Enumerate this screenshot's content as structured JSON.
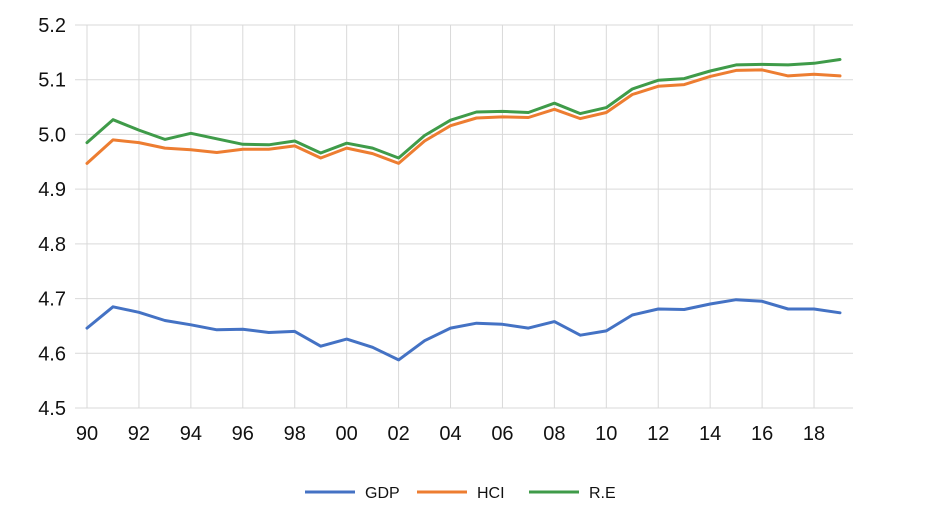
{
  "chart_data": {
    "type": "line",
    "title": "",
    "xlabel": "",
    "ylabel": "",
    "x": [
      1990,
      1991,
      1992,
      1993,
      1994,
      1995,
      1996,
      1997,
      1998,
      1999,
      2000,
      2001,
      2002,
      2003,
      2004,
      2005,
      2006,
      2007,
      2008,
      2009,
      2010,
      2011,
      2012,
      2013,
      2014,
      2015,
      2016,
      2017,
      2018,
      2019
    ],
    "xticks": [
      1990,
      1992,
      1994,
      1996,
      1998,
      2000,
      2002,
      2004,
      2006,
      2008,
      2010,
      2012,
      2014,
      2016,
      2018
    ],
    "xtick_labels": [
      "90",
      "92",
      "94",
      "96",
      "98",
      "00",
      "02",
      "04",
      "06",
      "08",
      "10",
      "12",
      "14",
      "16",
      "18"
    ],
    "xlim": [
      1990,
      2019
    ],
    "ylim": [
      4.5,
      5.2
    ],
    "yticks": [
      4.5,
      4.6,
      4.7,
      4.8,
      4.9,
      5.0,
      5.1,
      5.2
    ],
    "ytick_labels": [
      "4.5",
      "4.6",
      "4.7",
      "4.8",
      "4.9",
      "5.0",
      "5.1",
      "5.2"
    ],
    "grid": true,
    "legend_position": "bottom",
    "series": [
      {
        "name": "GDP",
        "color": "#4472c4",
        "values": [
          4.646,
          4.685,
          4.675,
          4.66,
          4.652,
          4.643,
          4.644,
          4.638,
          4.64,
          4.613,
          4.626,
          4.611,
          4.588,
          4.623,
          4.646,
          4.655,
          4.653,
          4.646,
          4.658,
          4.633,
          4.641,
          4.67,
          4.681,
          4.68,
          4.69,
          4.698,
          4.695,
          4.681,
          4.681,
          4.674
        ]
      },
      {
        "name": "HCI",
        "color": "#ed7d31",
        "values": [
          4.947,
          4.99,
          4.985,
          4.975,
          4.972,
          4.967,
          4.973,
          4.973,
          4.979,
          4.957,
          4.975,
          4.965,
          4.947,
          4.988,
          5.016,
          5.03,
          5.032,
          5.031,
          5.046,
          5.029,
          5.04,
          5.073,
          5.088,
          5.091,
          5.106,
          5.117,
          5.118,
          5.107,
          5.11,
          5.107
        ]
      },
      {
        "name": "R.E",
        "color": "#3f9b49",
        "values": [
          4.985,
          5.027,
          5.008,
          4.991,
          5.002,
          4.992,
          4.982,
          4.981,
          4.988,
          4.966,
          4.984,
          4.975,
          4.957,
          4.998,
          5.026,
          5.041,
          5.042,
          5.04,
          5.057,
          5.038,
          5.049,
          5.083,
          5.099,
          5.102,
          5.116,
          5.127,
          5.128,
          5.127,
          5.13,
          5.137
        ]
      }
    ]
  }
}
